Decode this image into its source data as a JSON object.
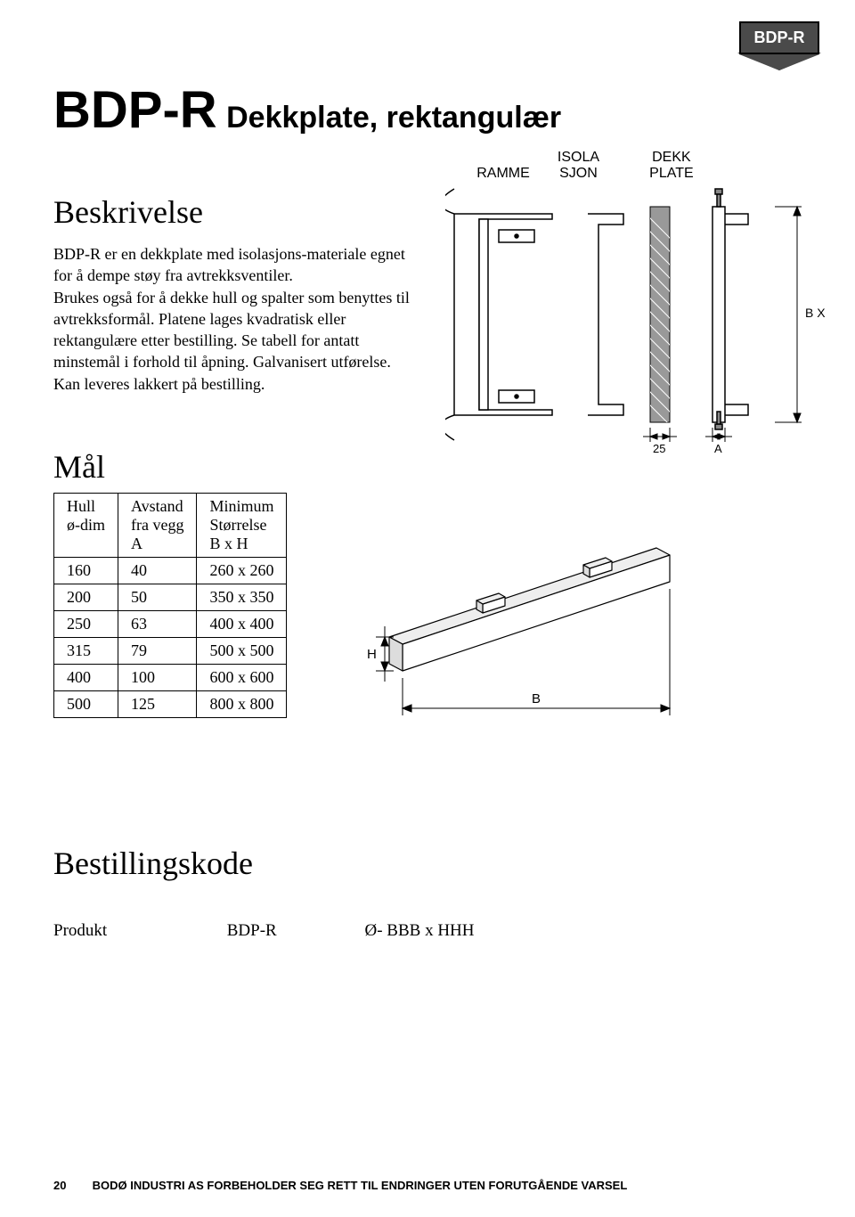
{
  "badge": {
    "label": "BDP-R"
  },
  "title": {
    "code": "BDP-R",
    "name": "Dekkplate, rektangulær"
  },
  "diagram_top": {
    "labels": {
      "ramme": "RAMME",
      "isola": "ISOLA\nSJON",
      "dekk": "DEKK\nPLATE"
    },
    "dim_bxh": "B X H",
    "dim_25": "25",
    "dim_A": "A",
    "colors": {
      "stroke": "#000000",
      "fill_hatch": "#777777",
      "screw": "#888888"
    }
  },
  "beskrivelse": {
    "heading": "Beskrivelse",
    "text": "BDP-R  er en dekkplate med isolasjons-materiale egnet for å dempe støy fra avtrekksventiler.\nBrukes også for å dekke hull og spalter som benyttes til avtrekksformål. Platene lages kvadratisk eller rektangulære etter bestilling. Se tabell for antatt minstemål i forhold til åpning. Galvanisert utførelse. Kan leveres lakkert på bestilling."
  },
  "mal": {
    "heading": "Mål",
    "columns": [
      "Hull\nø-dim",
      "Avstand\nfra vegg\nA",
      "Minimum\nStørrelse\nB x  H"
    ],
    "rows": [
      [
        "160",
        "40",
        "260 x 260"
      ],
      [
        "200",
        "50",
        "350 x 350"
      ],
      [
        "250",
        "63",
        "400 x 400"
      ],
      [
        "315",
        "79",
        "500 x 500"
      ],
      [
        "400",
        "100",
        "600 x 600"
      ],
      [
        "500",
        "125",
        "800 x 800"
      ]
    ]
  },
  "diagram_iso": {
    "dim_H": "H",
    "dim_B": "B",
    "colors": {
      "face": "#ffffff",
      "edge": "#dddddd",
      "stroke": "#000000"
    }
  },
  "bestillingskode": {
    "heading": "Bestillingskode",
    "label_produkt": "Produkt",
    "value_code": "BDP-R",
    "value_size": "Ø- BBB x  HHH"
  },
  "footer": {
    "page": "20",
    "text": "BODØ INDUSTRI AS FORBEHOLDER SEG RETT TIL ENDRINGER UTEN FORUTGÅENDE VARSEL"
  },
  "style": {
    "page_bg": "#ffffff",
    "text_color": "#000000",
    "badge_bg": "#4a4a4a",
    "title_fontsize_big": 58,
    "title_fontsize_sub": 34,
    "section_fontsize": 36,
    "body_fontsize": 18,
    "footer_fontsize": 13
  }
}
